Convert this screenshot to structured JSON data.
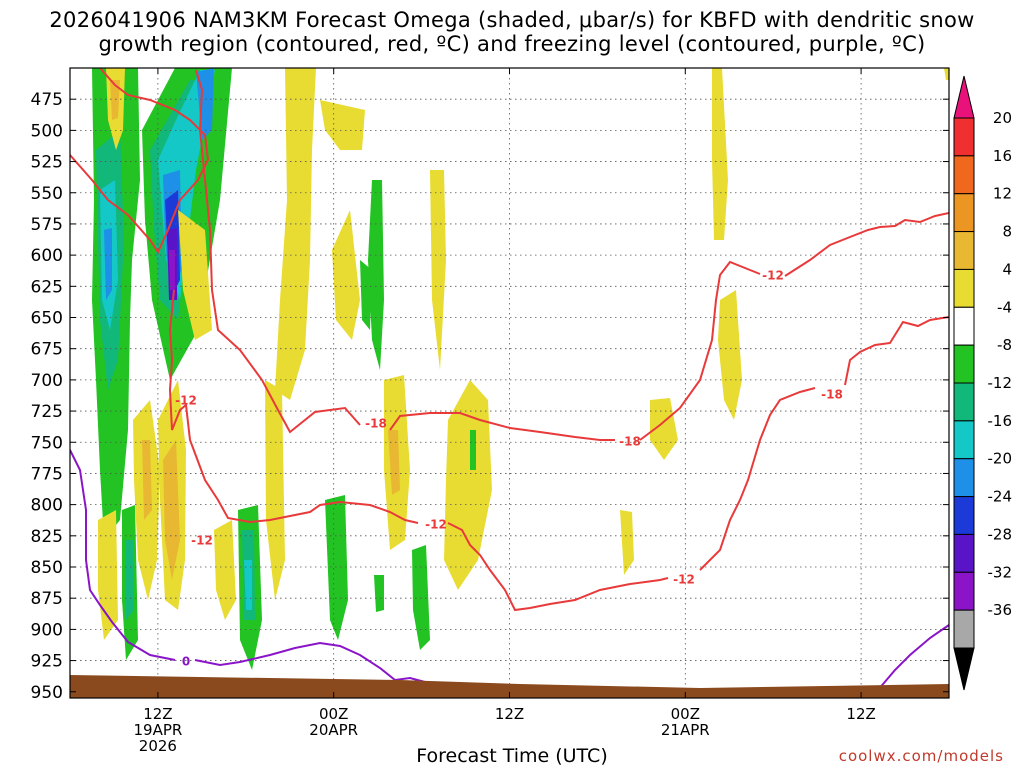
{
  "title_line1": "2026041906 NAM3KM Forecast Omega (shaded, μbar/s) for KBFD with dendritic snow",
  "title_line2": "growth region (contoured, red, ºC) and freezing level (contoured, purple, ºC)",
  "credit": "coolwx.com/models",
  "chart_data": {
    "type": "heatmap",
    "xlabel": "Forecast Time (UTC)",
    "x_ticks": [
      {
        "h": 6,
        "l1": "12Z",
        "l2": "19APR",
        "l3": "2026"
      },
      {
        "h": 18,
        "l1": "00Z",
        "l2": "20APR",
        "l3": ""
      },
      {
        "h": 30,
        "l1": "12Z",
        "l2": "",
        "l3": ""
      },
      {
        "h": 42,
        "l1": "00Z",
        "l2": "21APR",
        "l3": ""
      },
      {
        "h": 54,
        "l1": "12Z",
        "l2": "",
        "l3": ""
      }
    ],
    "xlim_hours": [
      0,
      60
    ],
    "y_levels_hPa": [
      475,
      500,
      525,
      550,
      575,
      600,
      625,
      650,
      675,
      700,
      725,
      750,
      775,
      800,
      825,
      850,
      875,
      900,
      925,
      950
    ],
    "ylim_hPa": [
      450,
      955
    ],
    "grid": true,
    "colorbar": {
      "labels": [
        "20",
        "16",
        "12",
        "8",
        "4",
        "-4",
        "-8",
        "-12",
        "-16",
        "-20",
        "-24",
        "-28",
        "-32",
        "-36"
      ],
      "colors": [
        "#f03030",
        "#f0681e",
        "#eb9622",
        "#e8b832",
        "#e8dc32",
        "#ffffff",
        "#22c322",
        "#12b87a",
        "#14c8c8",
        "#1e90e8",
        "#1c3ad8",
        "#5a14c8",
        "#8c14c8",
        "#a8a8a8"
      ],
      "top_arrow": "#e8127a",
      "bottom_arrow": "#000000"
    },
    "contours": {
      "dgz_label_values": [
        "-12",
        "-18",
        "-18",
        "-12",
        "-18",
        "-12",
        "-12",
        "-12"
      ],
      "freezing_label": "0",
      "dgz_color": "#e83a3a",
      "freezing_color": "#8a15c8",
      "ground_color": "#8b4a1e"
    }
  }
}
